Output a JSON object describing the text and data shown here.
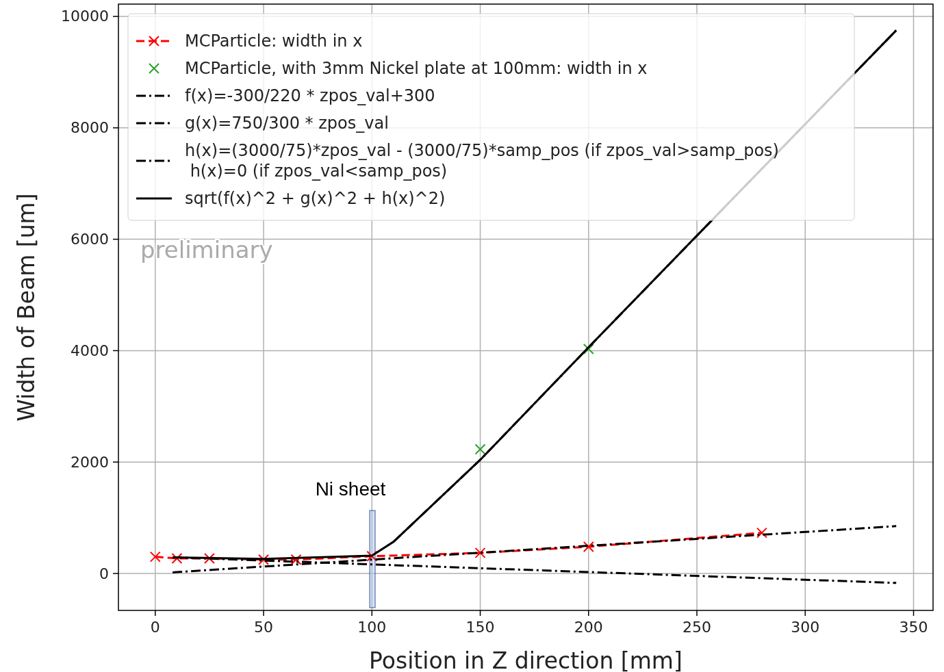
{
  "chart_data": {
    "type": "line",
    "xlabel": "Position in Z direction [mm]",
    "ylabel": "Width of Beam [um]",
    "xlim": [
      -17,
      359
    ],
    "ylim": [
      -663,
      10221
    ],
    "xticks": [
      0,
      50,
      100,
      150,
      200,
      250,
      300,
      350
    ],
    "yticks": [
      0,
      2000,
      4000,
      6000,
      8000,
      10000
    ],
    "grid": true,
    "legend": "top left",
    "series": [
      {
        "name": "MCParticle: width in x",
        "color": "#ff0000",
        "marker": "cross",
        "line_style": "dashed",
        "x": [
          0,
          10,
          25,
          50,
          65,
          100,
          150,
          200,
          280
        ],
        "values": [
          300,
          270,
          270,
          250,
          250,
          310,
          370,
          480,
          730
        ]
      },
      {
        "name": "MCParticle, with 3mm Nickel plate at 100mm: width in x",
        "color": "#2ca02c",
        "type": "scatter",
        "marker": "cross",
        "x": [
          150,
          200
        ],
        "values": [
          2230,
          4030
        ]
      },
      {
        "name": "f(x)=-300/220 * zpos_val+300",
        "color": "#000000",
        "line_style": "dashdot",
        "x": [
          8,
          342
        ],
        "values": [
          290,
          -170
        ]
      },
      {
        "name": "g(x)=750/300 * zpos_val",
        "color": "#000000",
        "line_style": "dashdot",
        "x": [
          8,
          342
        ],
        "values": [
          20,
          850
        ]
      },
      {
        "name": "h(x)=(3000/75)*zpos_val - (3000/75)*samp_pos (if zpos_val>samp_pos)\n h(x)=0 (if zpos_val<samp_pos)",
        "color": "#000000",
        "line_style": "dashdot",
        "x": [
          110,
          150,
          200,
          342
        ],
        "values": [
          570,
          2040,
          4060,
          9750
        ]
      },
      {
        "name": "sqrt(f(x)^2 + g(x)^2 + h(x)^2)",
        "color": "#000000",
        "line_style": "solid",
        "x": [
          8,
          50,
          100,
          110,
          150,
          200,
          342
        ],
        "values": [
          290,
          260,
          320,
          570,
          2040,
          4060,
          9750
        ]
      }
    ],
    "annotations": [
      "Ni sheet",
      "preliminary"
    ]
  }
}
